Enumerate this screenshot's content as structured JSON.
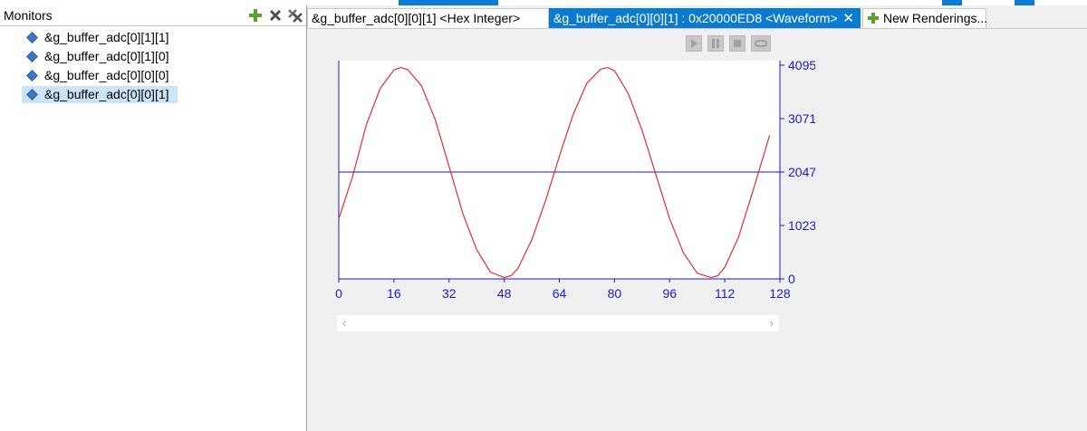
{
  "monitors": {
    "title": "Monitors",
    "items": [
      {
        "label": "&g_buffer_adc[0][1][1]",
        "selected": false
      },
      {
        "label": "&g_buffer_adc[0][1][0]",
        "selected": false
      },
      {
        "label": "&g_buffer_adc[0][0][0]",
        "selected": false
      },
      {
        "label": "&g_buffer_adc[0][0][1]",
        "selected": true
      }
    ],
    "icons": [
      "add-monitor-icon",
      "remove-monitor-icon",
      "remove-all-monitors-icon"
    ]
  },
  "tabs": {
    "hex": "&g_buffer_adc[0][0][1] <Hex Integer>",
    "waveform": "&g_buffer_adc[0][0][1] : 0x20000ED8 <Waveform>",
    "new_renderings": "New Renderings..."
  },
  "playback": {
    "icons": [
      "play-icon",
      "pause-icon",
      "stop-icon",
      "loop-icon"
    ]
  },
  "colors": {
    "accent": "#0b7ad1",
    "axis": "#1a1acc",
    "wave": "#e03030",
    "selection": "#cce4f7"
  },
  "chart_data": {
    "type": "line",
    "x_ticks": [
      "0",
      "16",
      "32",
      "48",
      "64",
      "80",
      "96",
      "112",
      "128"
    ],
    "y_ticks": [
      "0",
      "1023.75",
      "2047.5",
      "3071.25",
      "4095"
    ],
    "xlim": [
      0,
      128
    ],
    "ylim": [
      0,
      4095
    ],
    "hline": 2047.5,
    "series": [
      {
        "x": [
          0,
          4,
          8,
          12,
          16,
          18,
          20,
          24,
          28,
          32,
          36,
          40,
          44,
          48,
          50,
          52,
          56,
          60,
          64,
          68,
          72,
          76,
          78,
          80,
          84,
          88,
          92,
          96,
          100,
          104,
          108,
          110,
          112,
          116,
          120,
          125
        ],
        "y": [
          1150,
          1960,
          2950,
          3650,
          4005,
          4050,
          4010,
          3700,
          3050,
          2150,
          1250,
          560,
          130,
          25,
          60,
          200,
          750,
          1500,
          2350,
          3150,
          3750,
          4020,
          4050,
          3990,
          3550,
          2850,
          2000,
          1150,
          500,
          110,
          25,
          60,
          220,
          800,
          1650,
          2750
        ]
      }
    ]
  }
}
